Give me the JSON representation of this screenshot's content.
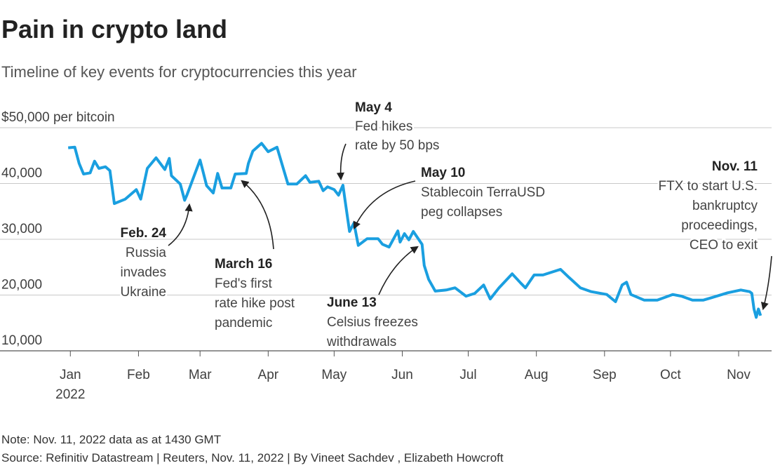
{
  "chart_data": {
    "type": "line",
    "title": "Pain in crypto land",
    "subtitle": "Timeline of key events for cryptocurrencies this year",
    "note": "Note: Nov. 11, 2022 data as at 1430 GMT",
    "source": "Source: Refinitiv Datastream | Reuters, Nov. 11, 2022 | By Vineet Sachdev , Elizabeth Howcroft",
    "color": "#1a9fe0",
    "grid": true,
    "ylim": [
      10000,
      50000
    ],
    "yticks": [
      {
        "value": 10000,
        "label": "10,000"
      },
      {
        "value": 20000,
        "label": "20,000"
      },
      {
        "value": 30000,
        "label": "30,000"
      },
      {
        "value": 40000,
        "label": "40,000"
      },
      {
        "value": 50000,
        "label": "$50,000 per bitcoin"
      }
    ],
    "xlim": [
      -32,
      319
    ],
    "xticks": [
      {
        "value": 0,
        "label": "Jan"
      },
      {
        "value": 31,
        "label": "Feb"
      },
      {
        "value": 59,
        "label": "Mar"
      },
      {
        "value": 90,
        "label": "Apr"
      },
      {
        "value": 120,
        "label": "May"
      },
      {
        "value": 151,
        "label": "Jun"
      },
      {
        "value": 181,
        "label": "Jul"
      },
      {
        "value": 212,
        "label": "Aug"
      },
      {
        "value": 243,
        "label": "Sep"
      },
      {
        "value": 273,
        "label": "Oct"
      },
      {
        "value": 304,
        "label": "Nov"
      }
    ],
    "xtick_year": "2022",
    "x": [
      -1,
      2,
      4,
      6,
      9,
      11,
      13,
      16,
      18,
      20,
      25,
      30,
      32,
      35,
      39,
      43,
      45,
      46,
      50,
      52,
      53,
      57,
      59,
      60,
      62,
      65,
      67,
      69,
      73,
      75,
      80,
      81,
      83,
      87,
      90,
      94,
      97,
      99,
      103,
      107,
      109,
      113,
      115,
      117,
      120,
      122,
      124,
      125,
      127,
      129,
      131,
      135,
      140,
      142,
      145,
      149,
      150,
      152,
      154,
      156,
      160,
      161,
      163,
      166,
      171,
      175,
      180,
      184,
      188,
      191,
      195,
      201,
      205,
      207,
      211,
      215,
      223,
      227,
      232,
      237,
      244,
      248,
      251,
      253,
      255,
      261,
      267,
      274,
      278,
      283,
      288,
      294,
      299,
      305,
      309,
      310,
      311,
      312,
      313,
      314
    ],
    "values": [
      46400,
      46500,
      43600,
      41700,
      41900,
      44000,
      42700,
      43000,
      42300,
      36400,
      37200,
      38900,
      37200,
      42700,
      44600,
      42500,
      44500,
      41400,
      39900,
      37000,
      37900,
      42100,
      44200,
      42700,
      39600,
      38300,
      41800,
      39200,
      39200,
      41700,
      41800,
      43600,
      45800,
      47200,
      45700,
      46500,
      42500,
      39900,
      39900,
      41400,
      40200,
      40400,
      38700,
      39400,
      38900,
      37900,
      39700,
      36900,
      31400,
      32900,
      28900,
      30100,
      30100,
      29100,
      28600,
      31500,
      29500,
      31000,
      29900,
      31400,
      29100,
      25300,
      22800,
      20700,
      20900,
      21300,
      19800,
      20300,
      21800,
      19300,
      21300,
      23800,
      22100,
      21300,
      23600,
      23600,
      24600,
      23100,
      21300,
      20600,
      20100,
      18800,
      21800,
      22300,
      20100,
      19100,
      19100,
      20100,
      19800,
      19100,
      19100,
      19800,
      20400,
      20900,
      20600,
      20300,
      17500,
      16000,
      17500,
      16300
    ],
    "annotations": [
      {
        "date": "Feb. 24",
        "text": [
          "Russia",
          "invades",
          "Ukraine"
        ]
      },
      {
        "date": "March 16",
        "text": [
          "Fed's first",
          "rate hike post",
          "pandemic"
        ]
      },
      {
        "date": "May 4",
        "text": [
          "Fed hikes",
          "rate by 50 bps"
        ]
      },
      {
        "date": "May 10",
        "text": [
          "Stablecoin TerraUSD",
          "peg collapses"
        ]
      },
      {
        "date": "June 13",
        "text": [
          "Celsius freezes",
          "withdrawals"
        ]
      },
      {
        "date": "Nov. 11",
        "text": [
          "FTX to start U.S.",
          "bankruptcy",
          "proceedings,",
          "CEO to exit"
        ]
      }
    ]
  }
}
